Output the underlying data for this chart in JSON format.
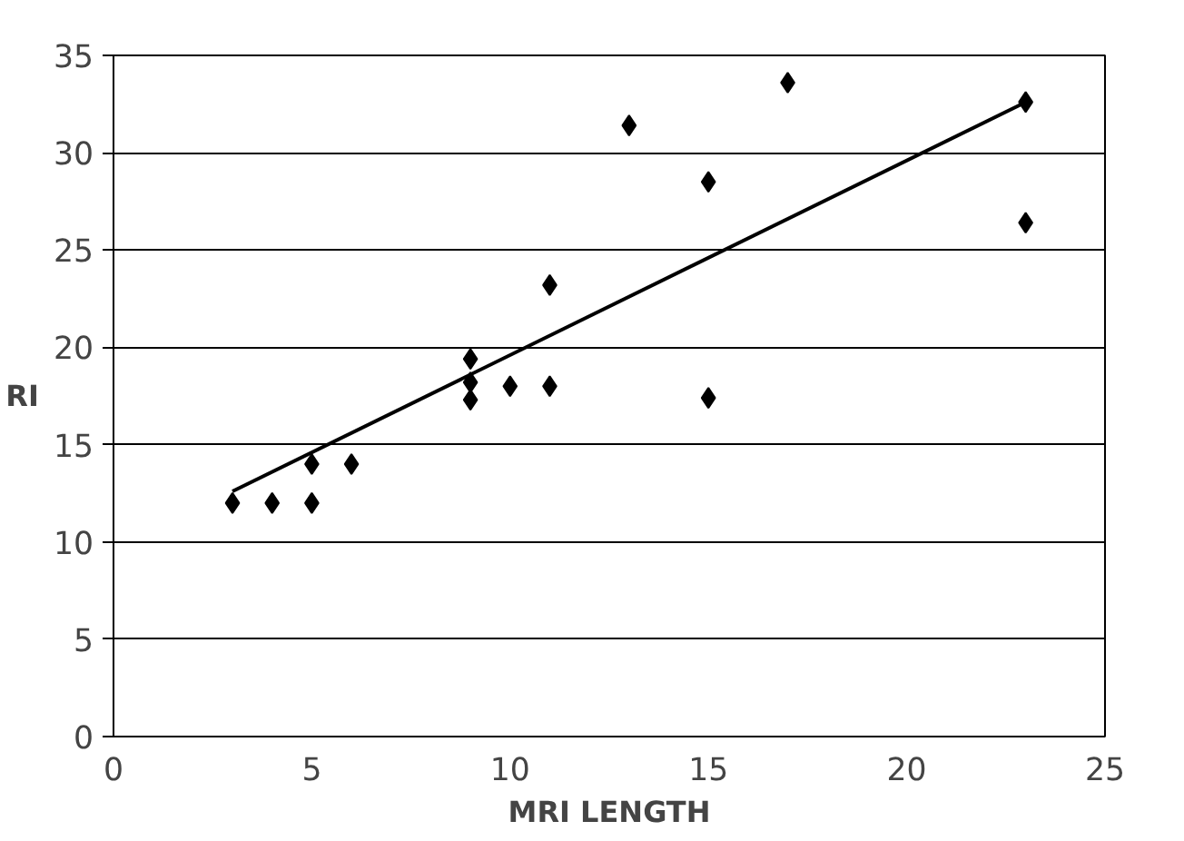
{
  "chart_data": {
    "type": "scatter",
    "xlabel": "MRI LENGTH",
    "ylabel": "RI",
    "xlim": [
      0,
      25
    ],
    "ylim": [
      0,
      35
    ],
    "xticks": [
      0,
      5,
      10,
      15,
      20,
      25
    ],
    "yticks": [
      0,
      5,
      10,
      15,
      20,
      25,
      30,
      35
    ],
    "grid": "y",
    "marker": "diamond",
    "series": [
      {
        "type": "scatter",
        "color": "#000000",
        "x": [
          3,
          4,
          5,
          5,
          6,
          9,
          9,
          9,
          10,
          11,
          11,
          13,
          15,
          15,
          17,
          23,
          23
        ],
        "values": [
          12,
          12,
          14,
          12,
          14,
          19.4,
          18.2,
          17.3,
          18,
          18,
          23.2,
          31.4,
          28.5,
          17.4,
          33.6,
          32.6,
          26.4
        ]
      },
      {
        "type": "line",
        "color": "#000000",
        "marker": "none",
        "line_style": "solid",
        "x": [
          3,
          23
        ],
        "values": [
          12.6,
          32.6
        ]
      }
    ]
  }
}
